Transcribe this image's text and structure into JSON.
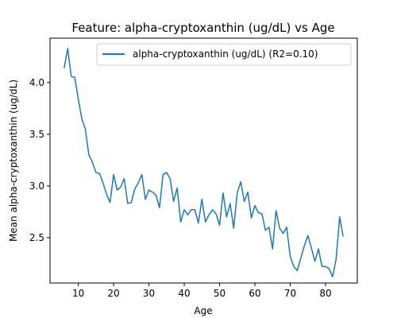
{
  "chart_data": {
    "type": "line",
    "title": "Feature: alpha-cryptoxanthin (ug/dL) vs Age",
    "xlabel": "Age",
    "ylabel": "Mean alpha-cryptoxanthin (ug/dL)",
    "xlim": [
      2,
      89
    ],
    "ylim": [
      2.06,
      4.43
    ],
    "xticks": [
      10,
      20,
      30,
      40,
      50,
      60,
      70,
      80
    ],
    "yticks": [
      2.5,
      3.0,
      3.5,
      4.0
    ],
    "xtick_labels": [
      "10",
      "20",
      "30",
      "40",
      "50",
      "60",
      "70",
      "80"
    ],
    "ytick_labels": [
      "2.5",
      "3.0",
      "3.5",
      "4.0"
    ],
    "grid": false,
    "legend_position": "top-right",
    "series": [
      {
        "name": "alpha-cryptoxanthin (ug/dL) (R2=0.10)",
        "color": "#1f77b4",
        "x": [
          6,
          7,
          8,
          9,
          10,
          11,
          12,
          13,
          14,
          15,
          16,
          17,
          18,
          19,
          20,
          21,
          22,
          23,
          24,
          25,
          26,
          27,
          28,
          29,
          30,
          31,
          32,
          33,
          34,
          35,
          36,
          37,
          38,
          39,
          40,
          41,
          42,
          43,
          44,
          45,
          46,
          47,
          48,
          49,
          50,
          51,
          52,
          53,
          54,
          55,
          56,
          57,
          58,
          59,
          60,
          61,
          62,
          63,
          64,
          65,
          66,
          67,
          68,
          69,
          70,
          71,
          72,
          73,
          74,
          75,
          76,
          77,
          78,
          79,
          80,
          81,
          82,
          83,
          84,
          85
        ],
        "y": [
          4.14,
          4.33,
          4.06,
          4.05,
          3.84,
          3.65,
          3.55,
          3.3,
          3.23,
          3.13,
          3.12,
          3.03,
          2.92,
          2.84,
          3.11,
          2.96,
          2.99,
          3.07,
          2.83,
          2.84,
          2.97,
          3.03,
          3.11,
          2.87,
          2.96,
          2.94,
          2.91,
          2.79,
          3.11,
          3.13,
          3.07,
          2.85,
          2.98,
          2.65,
          2.77,
          2.72,
          2.77,
          2.77,
          2.64,
          2.87,
          2.65,
          2.72,
          2.77,
          2.73,
          2.62,
          2.93,
          2.7,
          2.83,
          2.59,
          2.93,
          3.04,
          2.85,
          2.94,
          2.69,
          2.81,
          2.74,
          2.73,
          2.57,
          2.6,
          2.39,
          2.76,
          2.59,
          2.54,
          2.6,
          2.32,
          2.22,
          2.18,
          2.3,
          2.42,
          2.52,
          2.4,
          2.27,
          2.39,
          2.22,
          2.22,
          2.2,
          2.12,
          2.29,
          2.7,
          2.51
        ]
      }
    ]
  }
}
